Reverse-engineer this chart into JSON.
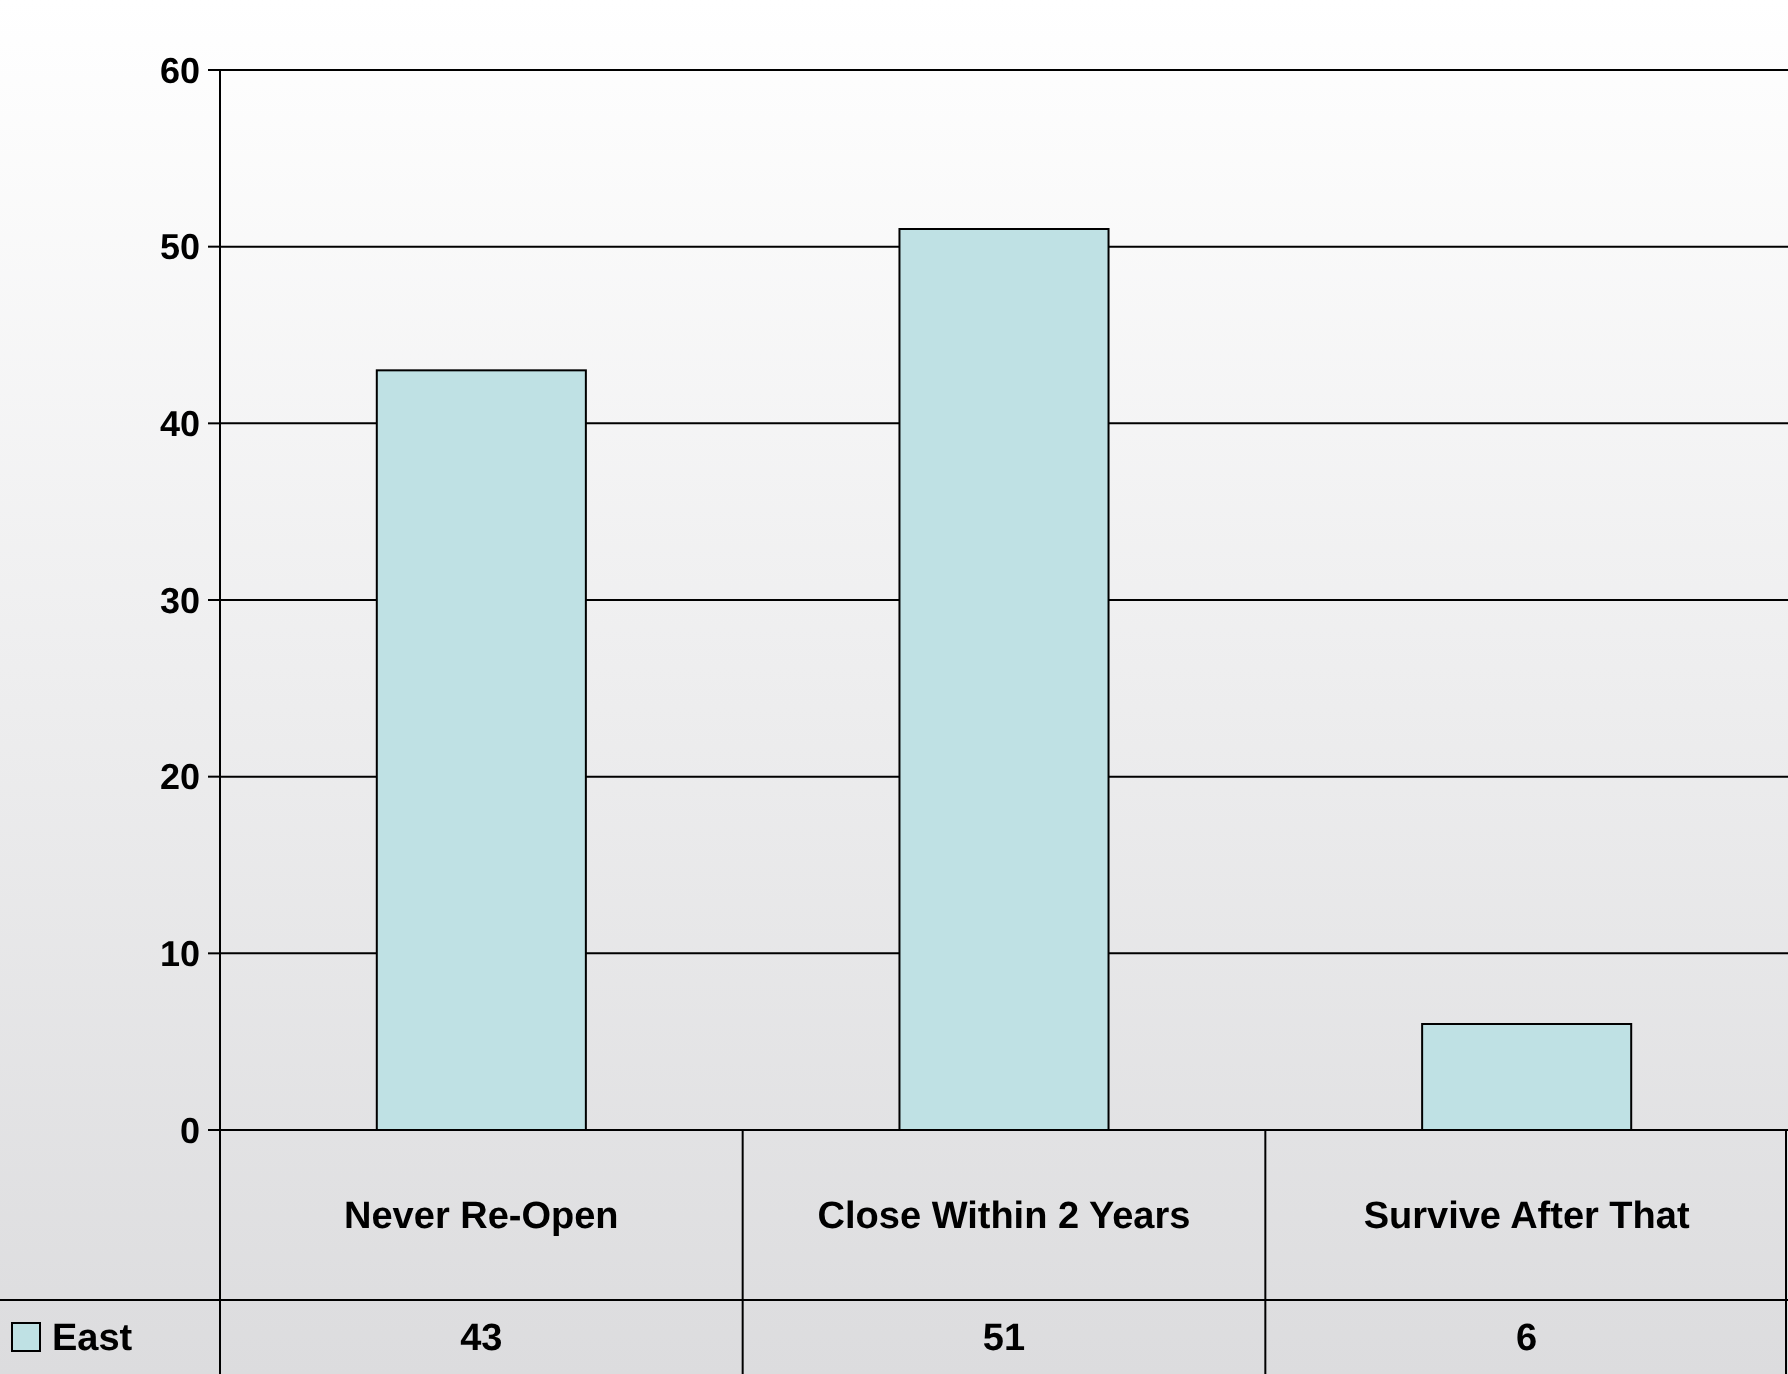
{
  "chart_data": {
    "type": "bar",
    "categories": [
      "Never Re-Open",
      "Close Within 2 Years",
      "Survive After That"
    ],
    "series": [
      {
        "name": "East",
        "color": "#bfe1e4",
        "values": [
          43,
          51,
          6
        ]
      }
    ],
    "ylim": [
      0,
      60
    ],
    "yticks": [
      0,
      10,
      20,
      30,
      40,
      50,
      60
    ],
    "grid": "y",
    "legend": "bottom",
    "data_labels": true
  }
}
